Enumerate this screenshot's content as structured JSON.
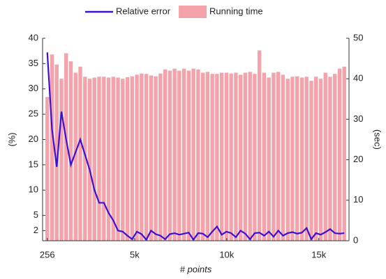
{
  "chart_data": {
    "type": "bar",
    "xlabel": "# points",
    "ylabel": "(%)",
    "y2label": "(sec)",
    "x": [
      256,
      512,
      768,
      1024,
      1280,
      1536,
      1792,
      2048,
      2304,
      2560,
      2816,
      3072,
      3328,
      3584,
      3840,
      4096,
      4352,
      4608,
      4864,
      5120,
      5376,
      5632,
      5888,
      6144,
      6400,
      6656,
      6912,
      7168,
      7424,
      7680,
      7936,
      8192,
      8448,
      8704,
      8960,
      9216,
      9472,
      9728,
      9984,
      10240,
      10496,
      10752,
      11008,
      11264,
      11520,
      11776,
      12032,
      12288,
      12544,
      12800,
      13056,
      13312,
      13568,
      13824,
      14080,
      14336,
      14592,
      14848,
      15104,
      15360,
      15616,
      15872,
      16128,
      16384
    ],
    "series": [
      {
        "name": "Relative error",
        "type": "line",
        "axis": "y",
        "color": "#3a10d8",
        "values": [
          37.2,
          22,
          14.6,
          25.5,
          20,
          15,
          17.5,
          20,
          17,
          14,
          10,
          7.5,
          7.5,
          5.5,
          4,
          2,
          1.8,
          1,
          0.3,
          1.8,
          1.3,
          0.2,
          2,
          1.3,
          1,
          0.3,
          1.3,
          1.5,
          1.2,
          1.4,
          1.6,
          0.2,
          1.5,
          1.4,
          0.7,
          1.8,
          2.8,
          1.2,
          1.8,
          1.5,
          0.7,
          2,
          1.4,
          0.3,
          1.5,
          1.6,
          1,
          1.8,
          0.8,
          2,
          1,
          1.5,
          1.7,
          1.4,
          1.6,
          2.5,
          0.3,
          1.5,
          1.2,
          1.7,
          2.3,
          1.5,
          1.4,
          1.5
        ]
      },
      {
        "name": "Running time",
        "type": "bar",
        "axis": "y2",
        "color": "#f5a3ab",
        "values": [
          35.5,
          46,
          43.5,
          40,
          46.3,
          44.3,
          41.5,
          43,
          40.5,
          40,
          40.3,
          40.5,
          40.5,
          40.3,
          40.5,
          40.3,
          40,
          40.4,
          40.6,
          41,
          41.3,
          41.2,
          40.8,
          40.6,
          41.3,
          42.3,
          42,
          42.5,
          42,
          42.5,
          42,
          42.5,
          42.3,
          41.5,
          41.7,
          41.2,
          41.2,
          41.5,
          41.5,
          41.3,
          41.5,
          41,
          41.5,
          41.7,
          41.2,
          47,
          41.5,
          40.3,
          41.5,
          41.7,
          41,
          40,
          40.5,
          40.6,
          40.3,
          40.5,
          39.5,
          40.5,
          40,
          41.5,
          40.5,
          41.2,
          42.5,
          43
        ]
      }
    ],
    "xlim": [
      0,
      16640
    ],
    "xticks": [
      256,
      {
        "value": 5000,
        "label": "5k"
      },
      {
        "value": 10000,
        "label": "10k"
      },
      {
        "value": 15000,
        "label": "15k"
      }
    ],
    "ylim": [
      0,
      40
    ],
    "yticks": [
      2,
      5,
      10,
      15,
      20,
      25,
      30,
      35,
      40
    ],
    "y2lim": [
      0,
      50
    ],
    "y2ticks": [
      0,
      10,
      20,
      30,
      40,
      50
    ],
    "legend": "top"
  }
}
